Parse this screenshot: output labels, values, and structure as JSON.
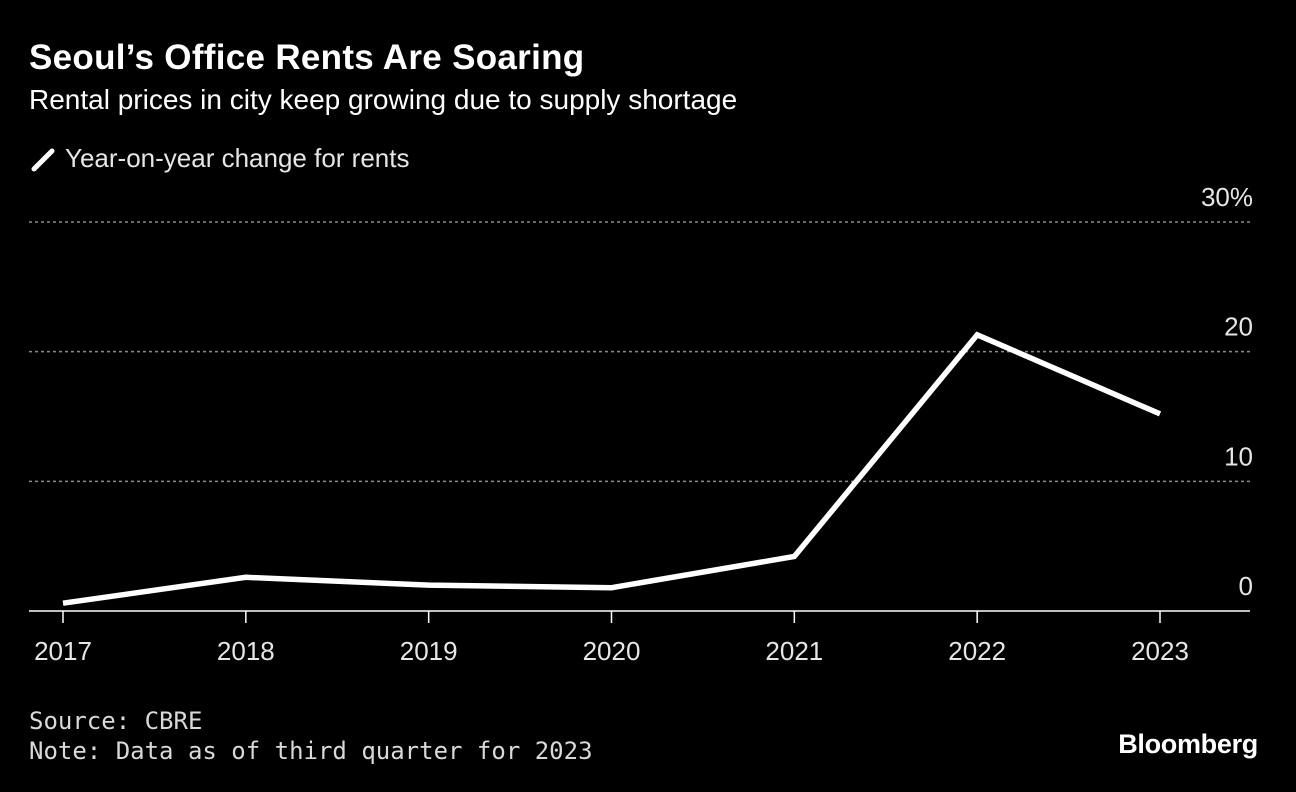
{
  "header": {
    "title": "Seoul’s Office Rents Are Soaring",
    "subtitle": "Rental prices in city keep growing due to supply shortage"
  },
  "legend": {
    "label": "Year-on-year change for rents"
  },
  "chart_data": {
    "type": "line",
    "title": "Seoul’s Office Rents Are Soaring",
    "subtitle": "Rental prices in city keep growing due to supply shortage",
    "xlabel": "",
    "ylabel": "",
    "ylim": [
      0,
      30
    ],
    "y_ticks": [
      0,
      10,
      20,
      30
    ],
    "y_tick_labels": [
      "0",
      "10",
      "20",
      "30%"
    ],
    "grid": true,
    "legend_position": "top-left",
    "x": [
      "2017",
      "2018",
      "2019",
      "2020",
      "2021",
      "2022",
      "2023"
    ],
    "series": [
      {
        "name": "Year-on-year change for rents",
        "values": [
          0.6,
          2.6,
          2.0,
          1.8,
          4.2,
          21.3,
          15.2
        ]
      }
    ]
  },
  "footer": {
    "source": "Source: CBRE",
    "note": "Note: Data as of third quarter for 2023"
  },
  "brand": "Bloomberg",
  "colors": {
    "background": "#000000",
    "line": "#ffffff",
    "grid": "#8c8c8c",
    "axis": "#ffffff",
    "text": "#ffffff"
  }
}
